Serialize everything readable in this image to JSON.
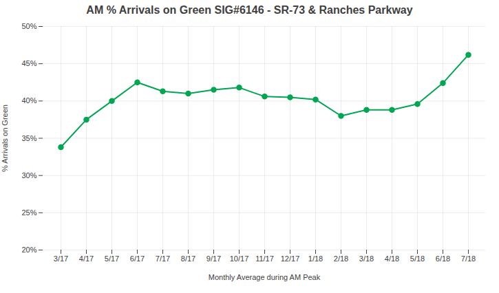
{
  "chart_data": {
    "type": "line",
    "title": "AM % Arrivals on Green SIG#6146 - SR-73 & Ranches Parkway",
    "xlabel": "Monthly Average during AM Peak",
    "ylabel": "% Arrivals on Green",
    "categories": [
      "3/17",
      "4/17",
      "5/17",
      "6/17",
      "7/17",
      "8/17",
      "9/17",
      "10/17",
      "11/17",
      "12/17",
      "1/18",
      "2/18",
      "3/18",
      "4/18",
      "5/18",
      "6/18",
      "7/18"
    ],
    "values": [
      0.338,
      0.375,
      0.4,
      0.425,
      0.413,
      0.41,
      0.415,
      0.418,
      0.406,
      0.405,
      0.402,
      0.38,
      0.388,
      0.388,
      0.396,
      0.424,
      0.462
    ],
    "color": "#00a651",
    "marker": "circle",
    "ylim": [
      0.2,
      0.5
    ],
    "yticks": [
      {
        "value": 0.2,
        "label": "20%"
      },
      {
        "value": 0.25,
        "label": "25%"
      },
      {
        "value": 0.3,
        "label": "30%"
      },
      {
        "value": 0.35,
        "label": "35%"
      },
      {
        "value": 0.4,
        "label": "40%"
      },
      {
        "value": 0.45,
        "label": "45%"
      },
      {
        "value": 0.5,
        "label": "50%"
      }
    ],
    "grid": true
  }
}
